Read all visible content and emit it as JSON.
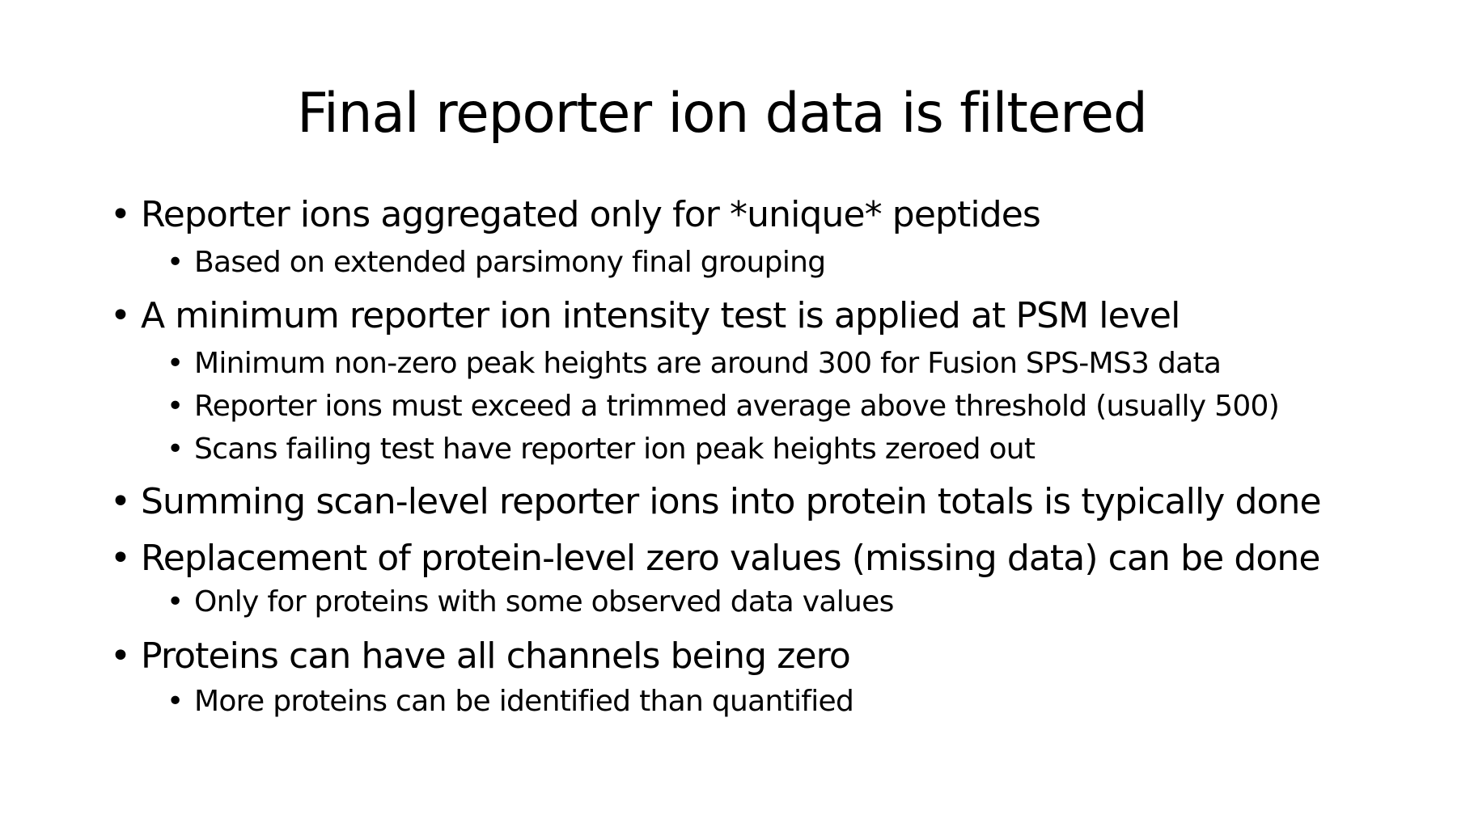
{
  "slide": {
    "title": "Final reporter ion data is filtered",
    "bullets": [
      {
        "marker": "•",
        "text": "Reporter ions aggregated only for *unique* peptides"
      },
      {
        "marker": "•",
        "text": "Based on extended parsimony final grouping"
      },
      {
        "marker": "•",
        "text": "A minimum reporter ion intensity test is applied at PSM level"
      },
      {
        "marker": "•",
        "text": "Minimum non-zero peak heights are around 300 for Fusion SPS-MS3 data"
      },
      {
        "marker": "•",
        "text": "Reporter ions must exceed a trimmed average above threshold (usually 500)"
      },
      {
        "marker": "•",
        "text": "Scans failing test have reporter ion peak heights zeroed out"
      },
      {
        "marker": "•",
        "text": "Summing scan-level reporter ions into protein totals is typically done"
      },
      {
        "marker": "•",
        "text": "Replacement of protein-level zero values (missing data) can be done"
      },
      {
        "marker": "•",
        "text": "Only for proteins with some observed data values"
      },
      {
        "marker": "•",
        "text": "Proteins can have all channels being zero"
      },
      {
        "marker": "•",
        "text": "More proteins can be identified than quantified"
      }
    ]
  }
}
